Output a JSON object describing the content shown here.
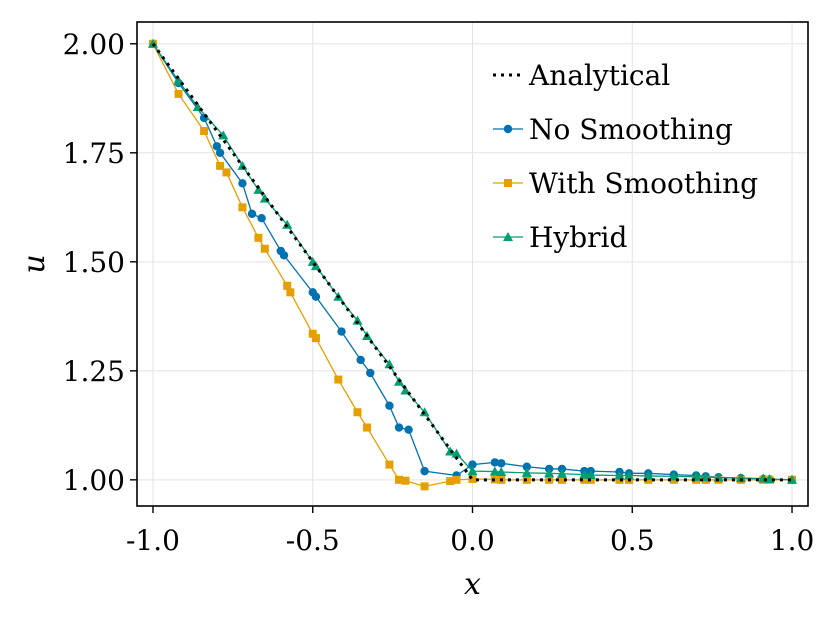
{
  "chart_data": {
    "type": "line",
    "title": "",
    "xlabel": "x",
    "ylabel": "u",
    "xlim": [
      -1.05,
      1.05
    ],
    "ylim": [
      0.94,
      2.05
    ],
    "grid": true,
    "legend_position": "top-right",
    "x_ticks": [
      -1.0,
      -0.5,
      0.0,
      0.5,
      1.0
    ],
    "x_tick_labels": [
      "-1.0",
      "-0.5",
      "0.0",
      "0.5",
      "1.0"
    ],
    "y_ticks": [
      1.0,
      1.25,
      1.5,
      1.75,
      2.0
    ],
    "y_tick_labels": [
      "1.00",
      "1.25",
      "1.50",
      "1.75",
      "2.00"
    ],
    "series": [
      {
        "name": "Analytical",
        "style": "dotted",
        "marker": "none",
        "color": "#000000",
        "x": [
          -1.0,
          0.0,
          1.0
        ],
        "y": [
          2.0,
          1.0,
          1.0
        ]
      },
      {
        "name": "No Smoothing",
        "style": "solid",
        "marker": "circle",
        "color": "#0072B2",
        "x": [
          -1.0,
          -0.92,
          -0.84,
          -0.8,
          -0.79,
          -0.72,
          -0.69,
          -0.66,
          -0.6,
          -0.59,
          -0.5,
          -0.49,
          -0.41,
          -0.35,
          -0.32,
          -0.26,
          -0.23,
          -0.2,
          -0.15,
          -0.05,
          0.0,
          0.07,
          0.09,
          0.17,
          0.24,
          0.28,
          0.35,
          0.37,
          0.46,
          0.49,
          0.55,
          0.63,
          0.7,
          0.73,
          0.77,
          0.84,
          0.91,
          0.93,
          1.0
        ],
        "y": [
          2.0,
          1.91,
          1.83,
          1.765,
          1.75,
          1.68,
          1.61,
          1.6,
          1.525,
          1.515,
          1.43,
          1.42,
          1.34,
          1.275,
          1.245,
          1.17,
          1.12,
          1.115,
          1.02,
          1.01,
          1.035,
          1.04,
          1.038,
          1.03,
          1.025,
          1.025,
          1.02,
          1.02,
          1.018,
          1.015,
          1.015,
          1.012,
          1.01,
          1.008,
          1.006,
          1.004,
          1.002,
          1.001,
          1.0
        ]
      },
      {
        "name": "With Smoothing",
        "style": "solid",
        "marker": "square",
        "color": "#E69F00",
        "x": [
          -1.0,
          -0.92,
          -0.84,
          -0.79,
          -0.77,
          -0.72,
          -0.67,
          -0.65,
          -0.58,
          -0.57,
          -0.5,
          -0.49,
          -0.42,
          -0.36,
          -0.33,
          -0.26,
          -0.23,
          -0.21,
          -0.15,
          -0.07,
          -0.05,
          0.0,
          0.07,
          0.09,
          0.17,
          0.24,
          0.28,
          0.35,
          0.37,
          0.46,
          0.49,
          0.55,
          0.63,
          0.7,
          0.73,
          0.77,
          0.84,
          0.91,
          0.93,
          1.0
        ],
        "y": [
          2.0,
          1.885,
          1.8,
          1.72,
          1.705,
          1.625,
          1.555,
          1.53,
          1.445,
          1.43,
          1.335,
          1.325,
          1.23,
          1.155,
          1.12,
          1.035,
          1.0,
          0.998,
          0.985,
          0.997,
          1.0,
          1.002,
          1.001,
          1.0,
          1.0,
          1.0,
          1.0,
          1.0,
          1.0,
          1.0,
          1.0,
          1.0,
          1.0,
          1.0,
          1.0,
          1.0,
          1.0,
          1.0,
          1.0,
          1.0
        ]
      },
      {
        "name": "Hybrid",
        "style": "solid",
        "marker": "triangle",
        "color": "#009E73",
        "x": [
          -1.0,
          -0.92,
          -0.86,
          -0.78,
          -0.72,
          -0.67,
          -0.65,
          -0.58,
          -0.5,
          -0.49,
          -0.42,
          -0.36,
          -0.33,
          -0.26,
          -0.23,
          -0.21,
          -0.15,
          -0.07,
          -0.05,
          0.0,
          0.07,
          0.09,
          0.17,
          0.24,
          0.28,
          0.35,
          0.37,
          0.46,
          0.49,
          0.55,
          0.63,
          0.7,
          0.73,
          0.77,
          0.84,
          0.91,
          0.93,
          1.0
        ],
        "y": [
          2.0,
          1.915,
          1.855,
          1.79,
          1.72,
          1.665,
          1.645,
          1.585,
          1.5,
          1.49,
          1.42,
          1.365,
          1.33,
          1.265,
          1.225,
          1.205,
          1.155,
          1.065,
          1.06,
          1.02,
          1.019,
          1.018,
          1.016,
          1.015,
          1.014,
          1.012,
          1.011,
          1.01,
          1.01,
          1.009,
          1.008,
          1.007,
          1.006,
          1.005,
          1.004,
          1.003,
          1.002,
          1.0
        ]
      }
    ]
  }
}
